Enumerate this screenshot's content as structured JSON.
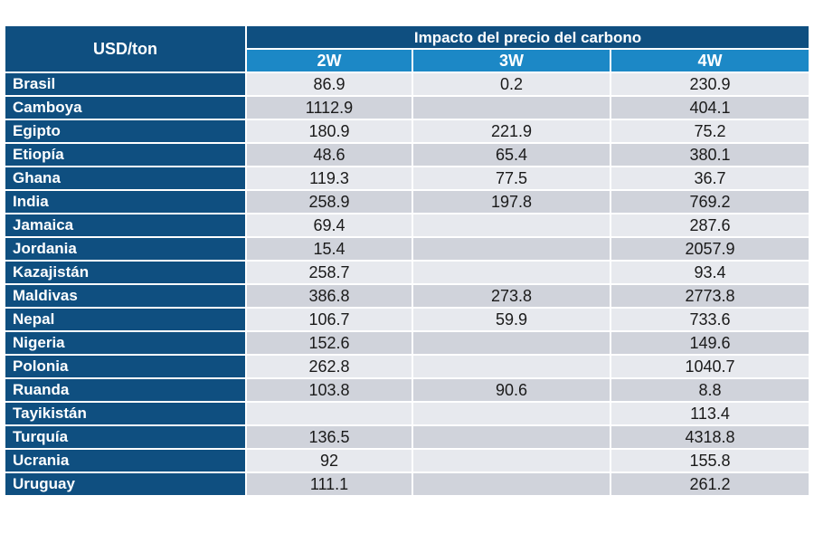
{
  "table": {
    "corner_label": "USD/ton",
    "group_header": "Impacto del precio del carbono",
    "columns": [
      "2W",
      "3W",
      "4W"
    ],
    "rows": [
      {
        "country": "Brasil",
        "v": [
          "86.9",
          "0.2",
          "230.9"
        ]
      },
      {
        "country": "Camboya",
        "v": [
          "1112.9",
          "",
          "404.1"
        ]
      },
      {
        "country": "Egipto",
        "v": [
          "180.9",
          "221.9",
          "75.2"
        ]
      },
      {
        "country": "Etiopía",
        "v": [
          "48.6",
          "65.4",
          "380.1"
        ]
      },
      {
        "country": "Ghana",
        "v": [
          "119.3",
          "77.5",
          "36.7"
        ]
      },
      {
        "country": "India",
        "v": [
          "258.9",
          "197.8",
          "769.2"
        ]
      },
      {
        "country": "Jamaica",
        "v": [
          "69.4",
          "",
          "287.6"
        ]
      },
      {
        "country": "Jordania",
        "v": [
          "15.4",
          "",
          "2057.9"
        ]
      },
      {
        "country": "Kazajistán",
        "v": [
          "258.7",
          "",
          "93.4"
        ]
      },
      {
        "country": "Maldivas",
        "v": [
          "386.8",
          "273.8",
          "2773.8"
        ]
      },
      {
        "country": "Nepal",
        "v": [
          "106.7",
          "59.9",
          "733.6"
        ]
      },
      {
        "country": "Nigeria",
        "v": [
          "152.6",
          "",
          "149.6"
        ]
      },
      {
        "country": "Polonia",
        "v": [
          "262.8",
          "",
          "1040.7"
        ]
      },
      {
        "country": "Ruanda",
        "v": [
          "103.8",
          "90.6",
          "8.8"
        ]
      },
      {
        "country": "Tayikistán",
        "v": [
          "",
          "",
          "113.4"
        ]
      },
      {
        "country": "Turquía",
        "v": [
          "136.5",
          "",
          "4318.8"
        ]
      },
      {
        "country": "Ucrania",
        "v": [
          "92",
          "",
          "155.8"
        ]
      },
      {
        "country": "Uruguay",
        "v": [
          "111.1",
          "",
          "261.2"
        ]
      }
    ]
  }
}
